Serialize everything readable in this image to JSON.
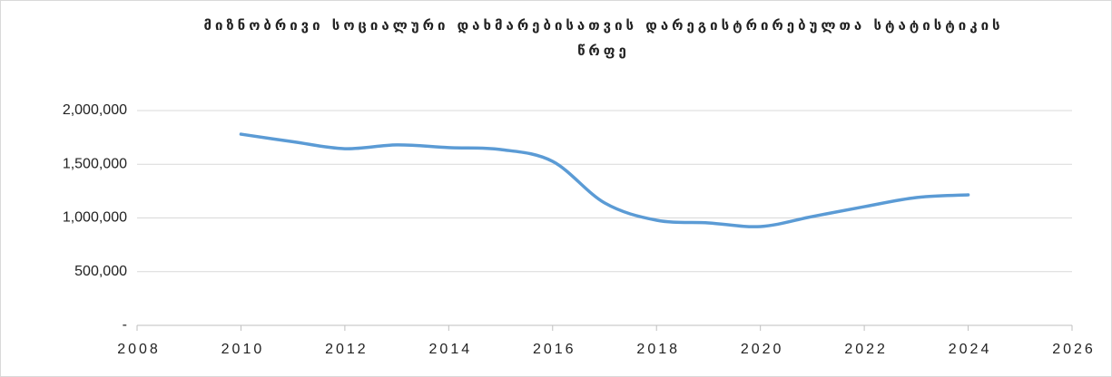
{
  "chart_data": {
    "type": "line",
    "title": "მიზნობრივი სოციალური დახმარებისათვის დარეგისტრირებულთა სტატისტიკის წრფე",
    "x": [
      2010,
      2011,
      2012,
      2013,
      2014,
      2015,
      2016,
      2017,
      2018,
      2019,
      2020,
      2021,
      2022,
      2023,
      2024
    ],
    "series": [
      {
        "name": "წრფე",
        "color": "#5b9bd5",
        "values": [
          1780000,
          1710000,
          1645000,
          1680000,
          1655000,
          1637000,
          1527000,
          1140000,
          979000,
          954000,
          920000,
          1013000,
          1105000,
          1190000,
          1215000
        ]
      }
    ],
    "xlim": [
      2008,
      2026
    ],
    "xticks": [
      2008,
      2010,
      2012,
      2014,
      2016,
      2018,
      2020,
      2022,
      2024,
      2026
    ],
    "ylim": [
      0,
      2000000
    ],
    "yticks": [
      {
        "value": 0,
        "label": "-"
      },
      {
        "value": 500000,
        "label": "500,000"
      },
      {
        "value": 1000000,
        "label": "1,000,000"
      },
      {
        "value": 1500000,
        "label": "1,500,000"
      },
      {
        "value": 2000000,
        "label": "2,000,000"
      }
    ],
    "grid": true
  }
}
